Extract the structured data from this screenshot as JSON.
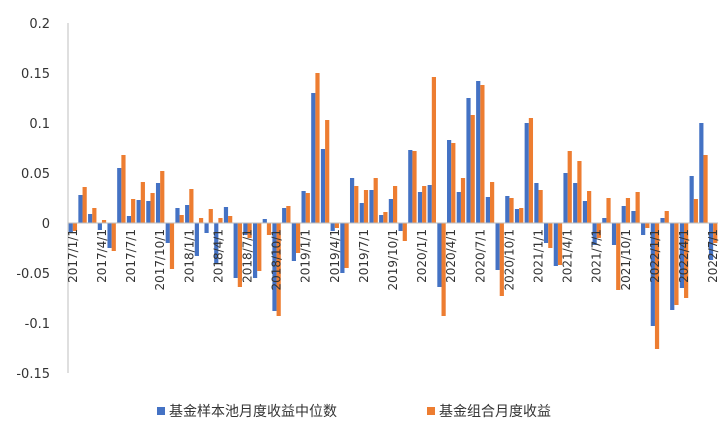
{
  "chart_data": {
    "type": "bar",
    "title": "",
    "xlabel": "",
    "ylabel": "",
    "ylim": [
      -0.15,
      0.2
    ],
    "yticks": [
      -0.15,
      -0.1,
      -0.05,
      0,
      0.05,
      0.1,
      0.15,
      0.2
    ],
    "ytick_labels": [
      "-0.15",
      "-0.1",
      "-0.05",
      "0",
      "0.05",
      "0.1",
      "0.15",
      "0.2"
    ],
    "grid": false,
    "legend_position": "bottom",
    "categories": [
      "2017/1/1",
      "2017/2/1",
      "2017/3/1",
      "2017/4/1",
      "2017/5/1",
      "2017/6/1",
      "2017/7/1",
      "2017/8/1",
      "2017/9/1",
      "2017/10/1",
      "2017/11/1",
      "2017/12/1",
      "2018/1/1",
      "2018/2/1",
      "2018/3/1",
      "2018/4/1",
      "2018/5/1",
      "2018/6/1",
      "2018/7/1",
      "2018/8/1",
      "2018/9/1",
      "2018/10/1",
      "2018/11/1",
      "2018/12/1",
      "2019/1/1",
      "2019/2/1",
      "2019/3/1",
      "2019/4/1",
      "2019/5/1",
      "2019/6/1",
      "2019/7/1",
      "2019/8/1",
      "2019/9/1",
      "2019/10/1",
      "2019/11/1",
      "2019/12/1",
      "2020/1/1",
      "2020/2/1",
      "2020/3/1",
      "2020/4/1",
      "2020/5/1",
      "2020/6/1",
      "2020/7/1",
      "2020/8/1",
      "2020/9/1",
      "2020/10/1",
      "2020/11/1",
      "2020/12/1",
      "2021/1/1",
      "2021/2/1",
      "2021/3/1",
      "2021/4/1",
      "2021/5/1",
      "2021/6/1",
      "2021/7/1",
      "2021/8/1",
      "2021/9/1",
      "2021/10/1",
      "2021/11/1",
      "2021/12/1",
      "2022/1/1",
      "2022/2/1",
      "2022/3/1",
      "2022/4/1",
      "2022/5/1",
      "2022/6/1",
      "2022/7/1"
    ],
    "x_tick_labels": [
      {
        "index": 0,
        "label": "2017/1/1"
      },
      {
        "index": 3,
        "label": "2017/4/1"
      },
      {
        "index": 6,
        "label": "2017/7/1"
      },
      {
        "index": 9,
        "label": "2017/10/1"
      },
      {
        "index": 12,
        "label": "2018/1/1"
      },
      {
        "index": 15,
        "label": "2018/4/1"
      },
      {
        "index": 18,
        "label": "2018/7/1"
      },
      {
        "index": 21,
        "label": "2018/10/1"
      },
      {
        "index": 24,
        "label": "2019/1/1"
      },
      {
        "index": 27,
        "label": "2019/4/1"
      },
      {
        "index": 30,
        "label": "2019/7/1"
      },
      {
        "index": 33,
        "label": "2019/10/1"
      },
      {
        "index": 36,
        "label": "2020/1/1"
      },
      {
        "index": 39,
        "label": "2020/4/1"
      },
      {
        "index": 42,
        "label": "2020/7/1"
      },
      {
        "index": 45,
        "label": "2020/10/1"
      },
      {
        "index": 48,
        "label": "2021/1/1"
      },
      {
        "index": 51,
        "label": "2021/4/1"
      },
      {
        "index": 54,
        "label": "2021/7/1"
      },
      {
        "index": 57,
        "label": "2021/10/1"
      },
      {
        "index": 60,
        "label": "2022/1/1"
      },
      {
        "index": 63,
        "label": "2022/4/1"
      },
      {
        "index": 66,
        "label": "2022/7/1"
      }
    ],
    "series": [
      {
        "name": "基金样本池月度收益中位数",
        "color": "#4472C4",
        "values": [
          -0.01,
          0.028,
          0.009,
          -0.007,
          -0.025,
          0.055,
          0.007,
          0.023,
          0.022,
          0.04,
          -0.02,
          0.015,
          0.018,
          -0.033,
          -0.01,
          -0.04,
          0.016,
          -0.055,
          -0.012,
          -0.055,
          0.004,
          -0.088,
          0.015,
          -0.038,
          0.032,
          0.13,
          0.074,
          -0.008,
          -0.05,
          0.045,
          0.02,
          0.033,
          0.008,
          0.024,
          -0.008,
          0.073,
          0.031,
          0.038,
          -0.064,
          0.083,
          0.031,
          0.125,
          0.142,
          0.026,
          -0.047,
          0.027,
          0.014,
          0.1,
          0.04,
          -0.02,
          -0.043,
          0.05,
          0.04,
          0.022,
          -0.022,
          0.005,
          -0.022,
          0.017,
          0.012,
          -0.012,
          -0.103,
          0.005,
          -0.087,
          -0.065,
          0.047,
          0.1,
          -0.037
        ]
      },
      {
        "name": "基金组合月度收益",
        "color": "#ED7D31",
        "values": [
          -0.008,
          0.036,
          0.015,
          0.003,
          -0.028,
          0.068,
          0.024,
          0.041,
          0.03,
          0.052,
          -0.046,
          0.008,
          0.034,
          0.005,
          0.014,
          0.005,
          0.007,
          -0.064,
          -0.015,
          -0.048,
          -0.012,
          -0.093,
          0.017,
          -0.03,
          0.03,
          0.15,
          0.103,
          -0.005,
          -0.045,
          0.037,
          0.033,
          0.045,
          0.011,
          0.037,
          -0.018,
          0.072,
          0.037,
          0.146,
          -0.093,
          0.08,
          0.045,
          0.108,
          0.138,
          0.041,
          -0.073,
          0.025,
          0.015,
          0.105,
          0.033,
          -0.025,
          -0.042,
          0.072,
          0.062,
          0.032,
          -0.015,
          0.025,
          -0.067,
          0.025,
          0.031,
          -0.005,
          -0.126,
          0.012,
          -0.082,
          -0.075,
          0.024,
          0.068,
          -0.02
        ]
      }
    ]
  }
}
